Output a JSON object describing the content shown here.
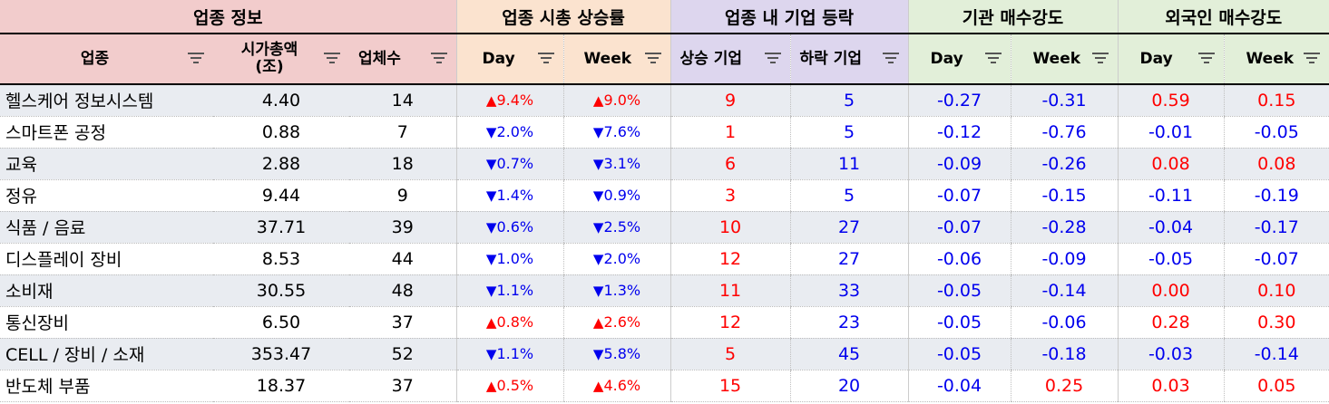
{
  "groups": {
    "info": "업종 정보",
    "mcap": "업종 시총 상승률",
    "firm": "업종 내 기업 등락",
    "inst": "기관 매수강도",
    "frgn": "외국인 매수강도"
  },
  "columns": {
    "sector": "업종",
    "mcap_line1": "시가총액",
    "mcap_line2": "(조)",
    "count": "업체수",
    "mcap_day": "Day",
    "mcap_week": "Week",
    "firm_up": "상승 기업",
    "firm_down": "하락 기업",
    "inst_day": "Day",
    "inst_week": "Week",
    "frgn_day": "Day",
    "frgn_week": "Week"
  },
  "colors": {
    "up": "#ff0000",
    "down": "#0000ee",
    "info_header": "#f2cccc",
    "mcap_header": "#fbe3cf",
    "firm_header": "#ddd6ee",
    "strength_header": "#e2efd9",
    "alt_row": "#e9ecf1"
  },
  "icons": {
    "filter": "filter-icon",
    "up": "triangle-up-icon",
    "down": "triangle-down-icon"
  },
  "rows": [
    {
      "sector": "헬스케어 정보시스템",
      "mcap": "4.40",
      "count": "14",
      "day_dir": "up",
      "day": "9.4%",
      "week_dir": "up",
      "week": "9.0%",
      "up": "9",
      "down": "5",
      "inst_day": "-0.27",
      "inst_week": "-0.31",
      "frgn_day": "0.59",
      "frgn_week": "0.15"
    },
    {
      "sector": "스마트폰 공정",
      "mcap": "0.88",
      "count": "7",
      "day_dir": "down",
      "day": "2.0%",
      "week_dir": "down",
      "week": "7.6%",
      "up": "1",
      "down": "5",
      "inst_day": "-0.12",
      "inst_week": "-0.76",
      "frgn_day": "-0.01",
      "frgn_week": "-0.05"
    },
    {
      "sector": "교육",
      "mcap": "2.88",
      "count": "18",
      "day_dir": "down",
      "day": "0.7%",
      "week_dir": "down",
      "week": "3.1%",
      "up": "6",
      "down": "11",
      "inst_day": "-0.09",
      "inst_week": "-0.26",
      "frgn_day": "0.08",
      "frgn_week": "0.08"
    },
    {
      "sector": "정유",
      "mcap": "9.44",
      "count": "9",
      "day_dir": "down",
      "day": "1.4%",
      "week_dir": "down",
      "week": "0.9%",
      "up": "3",
      "down": "5",
      "inst_day": "-0.07",
      "inst_week": "-0.15",
      "frgn_day": "-0.11",
      "frgn_week": "-0.19"
    },
    {
      "sector": "식품 / 음료",
      "mcap": "37.71",
      "count": "39",
      "day_dir": "down",
      "day": "0.6%",
      "week_dir": "down",
      "week": "2.5%",
      "up": "10",
      "down": "27",
      "inst_day": "-0.07",
      "inst_week": "-0.28",
      "frgn_day": "-0.04",
      "frgn_week": "-0.17"
    },
    {
      "sector": "디스플레이 장비",
      "mcap": "8.53",
      "count": "44",
      "day_dir": "down",
      "day": "1.0%",
      "week_dir": "down",
      "week": "2.0%",
      "up": "12",
      "down": "27",
      "inst_day": "-0.06",
      "inst_week": "-0.09",
      "frgn_day": "-0.05",
      "frgn_week": "-0.07"
    },
    {
      "sector": "소비재",
      "mcap": "30.55",
      "count": "48",
      "day_dir": "down",
      "day": "1.1%",
      "week_dir": "down",
      "week": "1.3%",
      "up": "11",
      "down": "33",
      "inst_day": "-0.05",
      "inst_week": "-0.14",
      "frgn_day": "0.00",
      "frgn_week": "0.10"
    },
    {
      "sector": "통신장비",
      "mcap": "6.50",
      "count": "37",
      "day_dir": "up",
      "day": "0.8%",
      "week_dir": "up",
      "week": "2.6%",
      "up": "12",
      "down": "23",
      "inst_day": "-0.05",
      "inst_week": "-0.06",
      "frgn_day": "0.28",
      "frgn_week": "0.30"
    },
    {
      "sector": "CELL / 장비 / 소재",
      "mcap": "353.47",
      "count": "52",
      "day_dir": "down",
      "day": "1.1%",
      "week_dir": "down",
      "week": "5.8%",
      "up": "5",
      "down": "45",
      "inst_day": "-0.05",
      "inst_week": "-0.18",
      "frgn_day": "-0.03",
      "frgn_week": "-0.14"
    },
    {
      "sector": "반도체 부품",
      "mcap": "18.37",
      "count": "37",
      "day_dir": "up",
      "day": "0.5%",
      "week_dir": "up",
      "week": "4.6%",
      "up": "15",
      "down": "20",
      "inst_day": "-0.04",
      "inst_week": "0.25",
      "frgn_day": "0.03",
      "frgn_week": "0.05"
    }
  ]
}
